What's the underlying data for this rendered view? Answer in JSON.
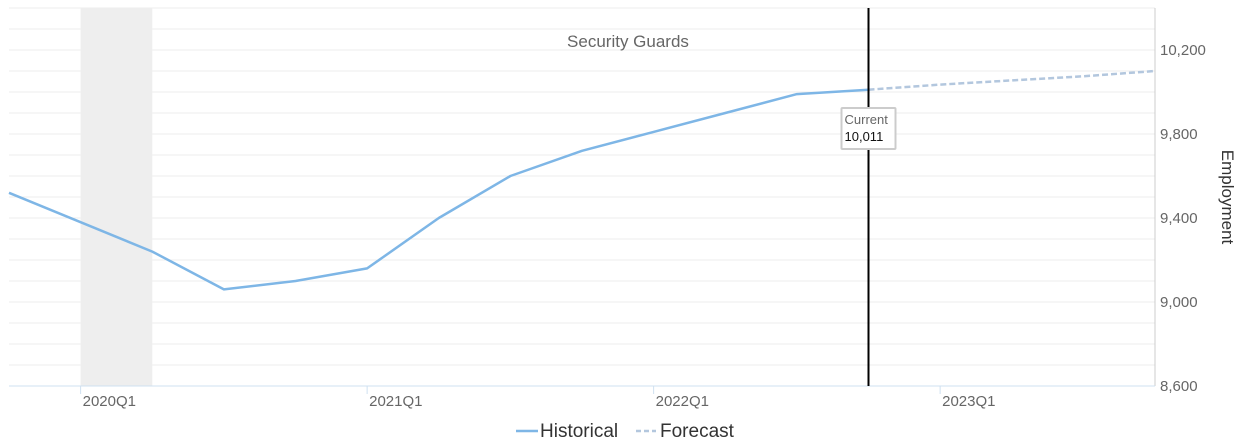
{
  "chart_data": {
    "type": "line",
    "title": "Security Guards",
    "xlabel": "",
    "ylabel": "Employment",
    "y_ticks": [
      8600,
      9000,
      9400,
      9800,
      10200
    ],
    "y_tick_labels": [
      "8,600",
      "9,000",
      "9,400",
      "9,800",
      "10,200"
    ],
    "ylim": [
      8600,
      10400
    ],
    "x_ticks": [
      "2020Q1",
      "2021Q1",
      "2022Q1",
      "2023Q1"
    ],
    "x_range": [
      "2019Q4",
      "2023Q4"
    ],
    "shaded_period": [
      "2020Q1",
      "2020Q2"
    ],
    "series": [
      {
        "name": "Historical",
        "style": "solid",
        "color": "#7eb6e6",
        "x": [
          "2019Q4",
          "2020Q2",
          "2020Q3",
          "2020Q4",
          "2021Q1",
          "2021Q2",
          "2021Q3",
          "2021Q4",
          "2022Q1",
          "2022Q2",
          "2022Q3",
          "2022Q4"
        ],
        "values": [
          9520,
          9240,
          9060,
          9100,
          9160,
          9400,
          9600,
          9720,
          9810,
          9900,
          9990,
          10011
        ]
      },
      {
        "name": "Forecast",
        "style": "dashed",
        "color": "#b3c7de",
        "x": [
          "2022Q4",
          "2023Q1",
          "2023Q2",
          "2023Q3",
          "2023Q4"
        ],
        "values": [
          10011,
          10035,
          10055,
          10075,
          10100
        ]
      }
    ],
    "marker": {
      "x": "2022Q4",
      "label": "Current",
      "value_label": "10,011"
    },
    "grid": true,
    "legend_position": "bottom-center"
  },
  "colors": {
    "historical": "#7eb6e6",
    "forecast": "#b3c7de",
    "grid": "#eeeeee",
    "shade": "#eeeeee",
    "marker_line": "#000000"
  }
}
